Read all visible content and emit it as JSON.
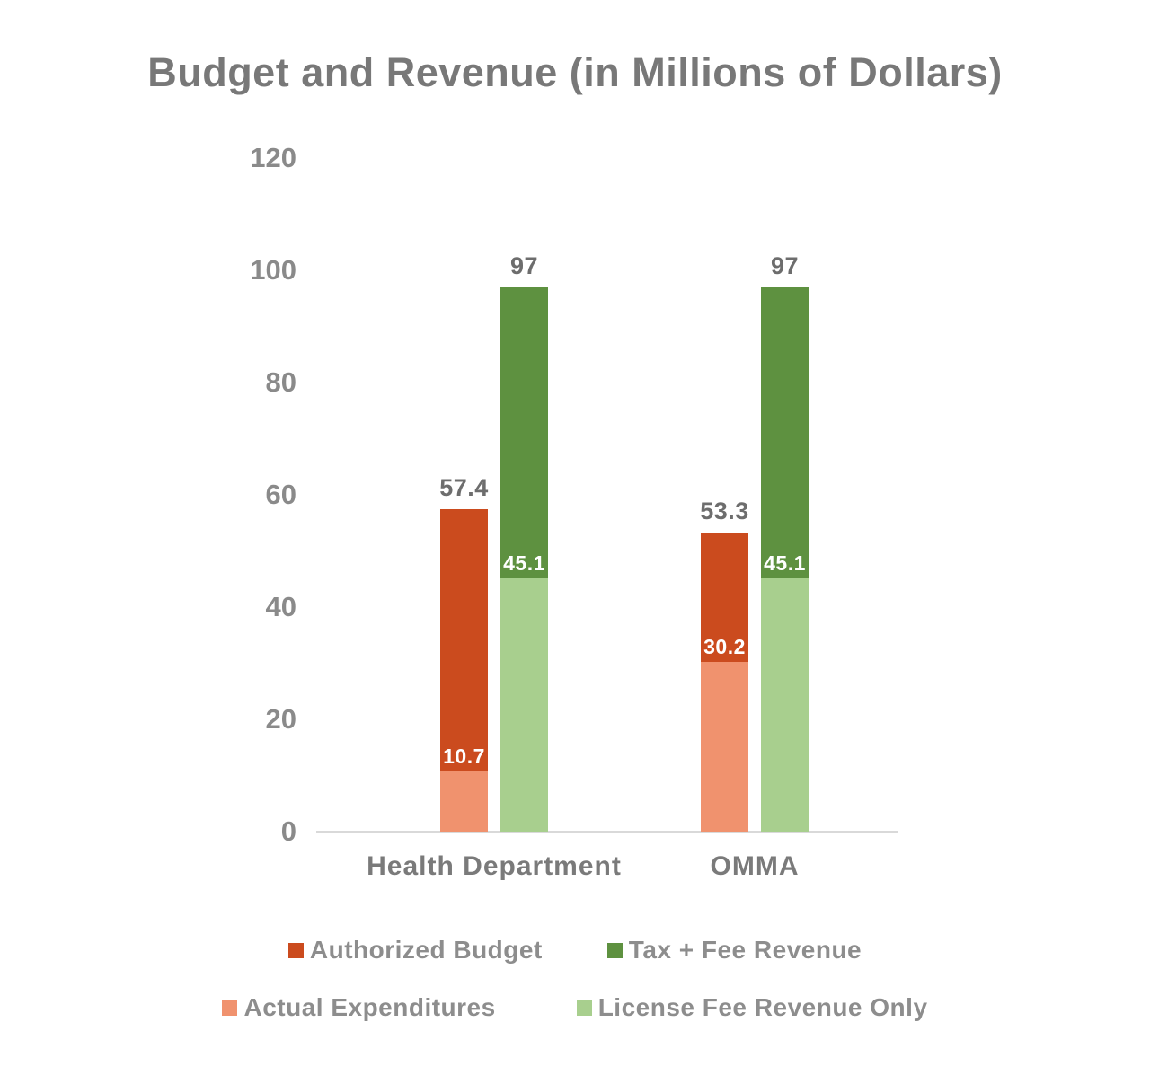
{
  "chart_data": {
    "type": "bar",
    "title": "Budget and Revenue (in Millions of Dollars)",
    "categories": [
      "Health Department",
      "OMMA"
    ],
    "series": [
      {
        "name": "Authorized Budget",
        "color": "#cb4b1e",
        "values": [
          57.4,
          53.3
        ]
      },
      {
        "name": "Actual Expenditures",
        "color": "#f0926e",
        "values": [
          10.7,
          30.2
        ]
      },
      {
        "name": "Tax + Fee Revenue",
        "color": "#5e9140",
        "values": [
          97,
          97
        ]
      },
      {
        "name": "License Fee Revenue Only",
        "color": "#a8cf8e",
        "values": [
          45.1,
          45.1
        ]
      }
    ],
    "bar_composition": [
      {
        "total_series": "Authorized Budget",
        "overlay_series": "Actual Expenditures"
      },
      {
        "total_series": "Tax + Fee Revenue",
        "overlay_series": "License Fee Revenue Only"
      }
    ],
    "ylim": [
      0,
      120
    ],
    "yticks": [
      0,
      20,
      40,
      60,
      80,
      100,
      120
    ],
    "grid": false,
    "legend_position": "bottom",
    "value_label_style": {
      "totals": "gray above bar",
      "overlays": "white inside bar at segment boundary"
    }
  },
  "legend": {
    "rows": [
      [
        {
          "label": "Authorized Budget",
          "color": "#cb4b1e"
        },
        {
          "label": "Tax + Fee Revenue",
          "color": "#5e9140"
        }
      ],
      [
        {
          "label": "Actual Expenditures",
          "color": "#f0926e"
        },
        {
          "label": "License Fee Revenue Only",
          "color": "#a8cf8e"
        }
      ]
    ]
  },
  "colors": {
    "background": "#ffffff",
    "title_gray": "#787878",
    "tick_gray": "#8a8a8a",
    "value_label_gray": "#6d6d6d",
    "inside_label_white": "#ffffff",
    "axis_line": "#d9d9d9"
  }
}
